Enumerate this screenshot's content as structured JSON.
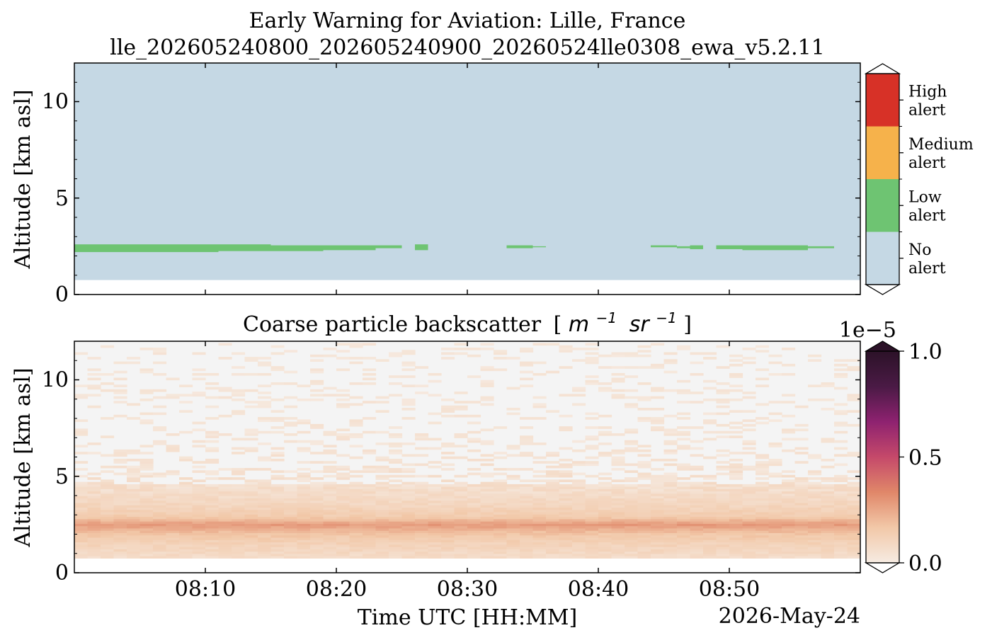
{
  "figure": {
    "title_line1": "Early Warning for Aviation: Lille, France",
    "title_line2": "lle_202605240800_202605240900_20260524lle0308_ewa_v5.2.11",
    "date_label": "2026-May-24"
  },
  "colors": {
    "no_alert": "#c5d8e4",
    "low_alert": "#6ec472",
    "medium_alert": "#f6b24b",
    "high_alert": "#d73127",
    "backscatter_background": "#f4f4f4",
    "backscatter_cmap": [
      "#f6ebe2",
      "#f2c8a8",
      "#e08769",
      "#c5496a",
      "#8e2270",
      "#4a1a45",
      "#2c1228"
    ]
  },
  "chart_data": [
    {
      "type": "heatmap",
      "title": "",
      "xlabel": "",
      "ylabel": "Altitude [km asl]",
      "x_range": [
        "08:00",
        "09:00"
      ],
      "ylim": [
        0,
        12
      ],
      "yticks": [
        0,
        5,
        10
      ],
      "xticks": [
        "08:10",
        "08:20",
        "08:30",
        "08:40",
        "08:50"
      ],
      "data_floor_km": 0.75,
      "data_top_km": 12,
      "colorbar": {
        "type": "categorical",
        "categories": [
          "No alert",
          "Low alert",
          "Medium alert",
          "High alert"
        ],
        "labels": [
          [
            "No",
            "alert"
          ],
          [
            "Low",
            "alert"
          ],
          [
            "Medium",
            "alert"
          ],
          [
            "High",
            "alert"
          ]
        ]
      },
      "low_alert_segments": [
        {
          "start": "08:00",
          "end": "08:11",
          "bottom_km": 2.2,
          "top_km": 2.6
        },
        {
          "start": "08:11",
          "end": "08:15",
          "bottom_km": 2.25,
          "top_km": 2.6
        },
        {
          "start": "08:15",
          "end": "08:19",
          "bottom_km": 2.25,
          "top_km": 2.55
        },
        {
          "start": "08:19",
          "end": "08:23",
          "bottom_km": 2.3,
          "top_km": 2.55
        },
        {
          "start": "08:23",
          "end": "08:25",
          "bottom_km": 2.4,
          "top_km": 2.55
        },
        {
          "start": "08:26",
          "end": "08:27",
          "bottom_km": 2.3,
          "top_km": 2.6
        },
        {
          "start": "08:33",
          "end": "08:35",
          "bottom_km": 2.4,
          "top_km": 2.55
        },
        {
          "start": "08:35",
          "end": "08:36",
          "bottom_km": 2.45,
          "top_km": 2.5
        },
        {
          "start": "08:44",
          "end": "08:46",
          "bottom_km": 2.45,
          "top_km": 2.55
        },
        {
          "start": "08:46",
          "end": "08:47",
          "bottom_km": 2.4,
          "top_km": 2.5
        },
        {
          "start": "08:47",
          "end": "08:48",
          "bottom_km": 2.35,
          "top_km": 2.55
        },
        {
          "start": "08:49",
          "end": "08:51",
          "bottom_km": 2.35,
          "top_km": 2.55
        },
        {
          "start": "08:51",
          "end": "08:53",
          "bottom_km": 2.3,
          "top_km": 2.55
        },
        {
          "start": "08:53",
          "end": "08:56",
          "bottom_km": 2.3,
          "top_km": 2.55
        },
        {
          "start": "08:56",
          "end": "08:58",
          "bottom_km": 2.4,
          "top_km": 2.5
        }
      ]
    },
    {
      "type": "heatmap",
      "title": "Coarse particle backscatter",
      "title_unit_m": "m",
      "title_unit_m_exp": "−1",
      "title_unit_sr": "sr",
      "title_unit_sr_exp": "−1",
      "title_bracket_open": "[",
      "title_bracket_close": "]",
      "xlabel": "Time UTC [HH:MM]",
      "ylabel": "Altitude [km asl]",
      "x_range": [
        "08:00",
        "09:00"
      ],
      "ylim": [
        0,
        12
      ],
      "yticks": [
        0,
        5,
        10
      ],
      "xticks": [
        "08:10",
        "08:20",
        "08:30",
        "08:40",
        "08:50"
      ],
      "data_floor_km": 0.75,
      "data_top_km": 11.8,
      "colorbar": {
        "type": "continuous",
        "range": [
          0.0,
          1.0
        ],
        "ticks": [
          "0.0",
          "0.5",
          "1.0"
        ],
        "multiplier": "1e−5"
      },
      "vertical_profile": [
        {
          "altitude_km": 0.75,
          "value": 0.04
        },
        {
          "altitude_km": 1.5,
          "value": 0.07
        },
        {
          "altitude_km": 2.0,
          "value": 0.1
        },
        {
          "altitude_km": 2.5,
          "value": 0.17
        },
        {
          "altitude_km": 2.9,
          "value": 0.09
        },
        {
          "altitude_km": 3.5,
          "value": 0.06
        },
        {
          "altitude_km": 4.0,
          "value": 0.045
        },
        {
          "altitude_km": 5.0,
          "value": 0.025
        },
        {
          "altitude_km": 7.0,
          "value": 0.01
        },
        {
          "altitude_km": 11.8,
          "value": 0.005
        }
      ]
    }
  ]
}
